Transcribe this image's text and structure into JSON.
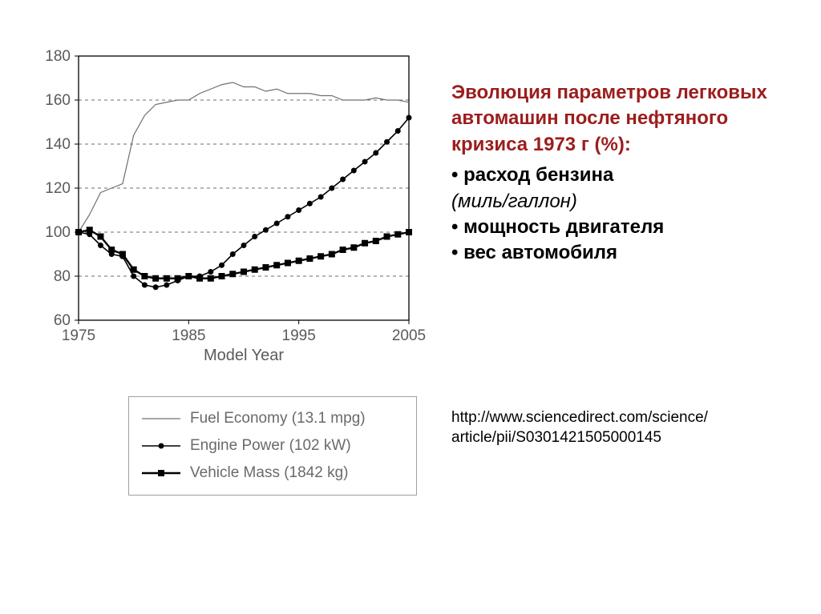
{
  "chart": {
    "type": "line",
    "background_color": "#ffffff",
    "plot_border_color": "#000000",
    "grid_color": "#6e6e6e",
    "grid_dash": "4 4",
    "xlim": [
      1975,
      2005
    ],
    "ylim": [
      60,
      180
    ],
    "xticks": [
      1975,
      1985,
      1995,
      2005
    ],
    "yticks": [
      60,
      80,
      100,
      120,
      140,
      160,
      180
    ],
    "xlabel": "Model Year",
    "label_fontsize": 19,
    "tick_fontsize": 19,
    "tick_color": "#5a5a5a",
    "series": {
      "fuel_economy": {
        "label": "Fuel Economy (13.1 mpg)",
        "color": "#707070",
        "line_width": 1.2,
        "marker": "none",
        "x": [
          1975,
          1976,
          1977,
          1978,
          1979,
          1980,
          1981,
          1982,
          1983,
          1984,
          1985,
          1986,
          1987,
          1988,
          1989,
          1990,
          1991,
          1992,
          1993,
          1994,
          1995,
          1996,
          1997,
          1998,
          1999,
          2000,
          2001,
          2002,
          2003,
          2004,
          2005
        ],
        "y": [
          100,
          108,
          118,
          120,
          122,
          144,
          153,
          158,
          159,
          160,
          160,
          163,
          165,
          167,
          168,
          166,
          166,
          164,
          165,
          163,
          163,
          163,
          162,
          162,
          160,
          160,
          160,
          161,
          160,
          160,
          159
        ]
      },
      "engine_power": {
        "label": "Engine Power (102 kW)",
        "color": "#000000",
        "line_width": 1.6,
        "marker": "circle",
        "marker_size": 3.5,
        "x": [
          1975,
          1976,
          1977,
          1978,
          1979,
          1980,
          1981,
          1982,
          1983,
          1984,
          1985,
          1986,
          1987,
          1988,
          1989,
          1990,
          1991,
          1992,
          1993,
          1994,
          1995,
          1996,
          1997,
          1998,
          1999,
          2000,
          2001,
          2002,
          2003,
          2004,
          2005
        ],
        "y": [
          100,
          99,
          94,
          90,
          89,
          80,
          76,
          75,
          76,
          78,
          80,
          80,
          82,
          85,
          90,
          94,
          98,
          101,
          104,
          107,
          110,
          113,
          116,
          120,
          124,
          128,
          132,
          136,
          141,
          146,
          152
        ]
      },
      "vehicle_mass": {
        "label": "Vehicle Mass (1842 kg)",
        "color": "#000000",
        "line_width": 2.4,
        "marker": "square",
        "marker_size": 4,
        "x": [
          1975,
          1976,
          1977,
          1978,
          1979,
          1980,
          1981,
          1982,
          1983,
          1984,
          1985,
          1986,
          1987,
          1988,
          1989,
          1990,
          1991,
          1992,
          1993,
          1994,
          1995,
          1996,
          1997,
          1998,
          1999,
          2000,
          2001,
          2002,
          2003,
          2004,
          2005
        ],
        "y": [
          100,
          101,
          98,
          92,
          90,
          83,
          80,
          79,
          79,
          79,
          80,
          79,
          79,
          80,
          81,
          82,
          83,
          84,
          85,
          86,
          87,
          88,
          89,
          90,
          92,
          93,
          95,
          96,
          98,
          99,
          100
        ]
      }
    },
    "legend_items": [
      "fuel_economy",
      "engine_power",
      "vehicle_mass"
    ]
  },
  "side": {
    "title": "Эволюция параметров легковых автомашин после нефтяного кризиса 1973 г (%):",
    "bullets": [
      {
        "bold": "расход бензина",
        "italic": "(миль/галлон)"
      },
      {
        "bold": "мощность двигателя",
        "italic": ""
      },
      {
        "bold": "вес автомобиля",
        "italic": ""
      }
    ]
  },
  "url": "http://www.sciencedirect.com/science/article/pii/S0301421505000145"
}
